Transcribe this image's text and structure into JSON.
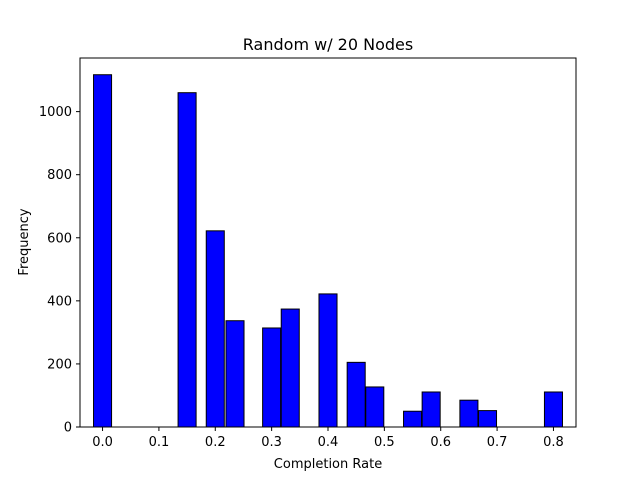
{
  "chart_data": {
    "type": "bar",
    "title": "Random w/ 20 Nodes",
    "xlabel": "Completion Rate",
    "ylabel": "Frequency",
    "xlim": [
      -0.04,
      0.84
    ],
    "ylim": [
      0,
      1170
    ],
    "xticks": [
      0.0,
      0.1,
      0.2,
      0.3,
      0.4,
      0.5,
      0.6,
      0.7,
      0.8
    ],
    "xtick_labels": [
      "0.0",
      "0.1",
      "0.2",
      "0.3",
      "0.4",
      "0.5",
      "0.6",
      "0.7",
      "0.8"
    ],
    "yticks": [
      0,
      200,
      400,
      600,
      800,
      1000
    ],
    "ytick_labels": [
      "0",
      "200",
      "400",
      "600",
      "800",
      "1000"
    ],
    "bin_width": 0.032,
    "bars": [
      {
        "x": 0.0,
        "value": 1117
      },
      {
        "x": 0.15,
        "value": 1060
      },
      {
        "x": 0.2,
        "value": 622
      },
      {
        "x": 0.235,
        "value": 337
      },
      {
        "x": 0.3,
        "value": 314
      },
      {
        "x": 0.333,
        "value": 374
      },
      {
        "x": 0.4,
        "value": 422
      },
      {
        "x": 0.45,
        "value": 205
      },
      {
        "x": 0.483,
        "value": 127
      },
      {
        "x": 0.55,
        "value": 50
      },
      {
        "x": 0.583,
        "value": 111
      },
      {
        "x": 0.65,
        "value": 85
      },
      {
        "x": 0.683,
        "value": 52
      },
      {
        "x": 0.8,
        "value": 111
      }
    ],
    "bar_color": "#0000ff",
    "edge_color": "#000000",
    "grid": false,
    "legend": "none"
  }
}
